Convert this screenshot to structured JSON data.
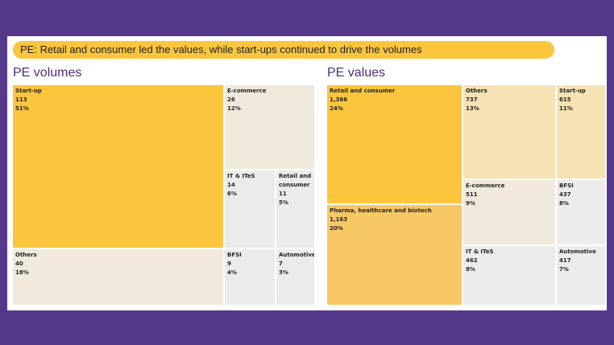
{
  "banner": {
    "text": "PE: Retail and consumer led the values, while start-ups continued to drive the volumes"
  },
  "volumes": {
    "title": "PE volumes",
    "tiles": [
      {
        "label": "Start-up",
        "value": "113",
        "share": "51%"
      },
      {
        "label": "E-commerce",
        "value": "26",
        "share": "12%"
      },
      {
        "label": "IT & ITeS",
        "value": "14",
        "share": "6%"
      },
      {
        "label": "Retail and consumer",
        "value": "11",
        "share": "5%"
      },
      {
        "label": "Others",
        "value": "40",
        "share": "18%"
      },
      {
        "label": "BFSI",
        "value": "9",
        "share": "4%"
      },
      {
        "label": "Automotive",
        "value": "7",
        "share": "3%"
      }
    ]
  },
  "values": {
    "title": "PE values",
    "tiles": [
      {
        "label": "Retail and consumer",
        "value": "1,366",
        "share": "24%"
      },
      {
        "label": "Others",
        "value": "737",
        "share": "13%"
      },
      {
        "label": "Start-up",
        "value": "615",
        "share": "11%"
      },
      {
        "label": "Pharma, healthcare and biotech",
        "value": "1,163",
        "share": "20%"
      },
      {
        "label": "E-commerce",
        "value": "511",
        "share": "9%"
      },
      {
        "label": "BFSI",
        "value": "437",
        "share": "8%"
      },
      {
        "label": "IT & ITeS",
        "value": "462",
        "share": "8%"
      },
      {
        "label": "Automotive",
        "value": "417",
        "share": "7%"
      }
    ]
  },
  "chart_data": [
    {
      "type": "treemap",
      "title": "PE volumes",
      "categories": [
        "Start-up",
        "Others",
        "E-commerce",
        "IT & ITeS",
        "Retail and consumer",
        "BFSI",
        "Automotive"
      ],
      "values": [
        113,
        40,
        26,
        14,
        11,
        9,
        7
      ],
      "percent": [
        51,
        18,
        12,
        6,
        5,
        4,
        3
      ]
    },
    {
      "type": "treemap",
      "title": "PE values",
      "categories": [
        "Retail and consumer",
        "Pharma, healthcare and biotech",
        "Others",
        "Start-up",
        "E-commerce",
        "IT & ITeS",
        "BFSI",
        "Automotive"
      ],
      "values": [
        1366,
        1163,
        737,
        615,
        511,
        462,
        437,
        417
      ],
      "percent": [
        24,
        20,
        13,
        11,
        9,
        8,
        8,
        7
      ]
    }
  ],
  "colors": {
    "background": "#55388a",
    "accent": "#fbc63d",
    "title": "#4f2d82",
    "pharma": "#f8c864",
    "mid": "#f6e2b2",
    "light": "#f1eadc",
    "grey": "#ebebeb"
  }
}
